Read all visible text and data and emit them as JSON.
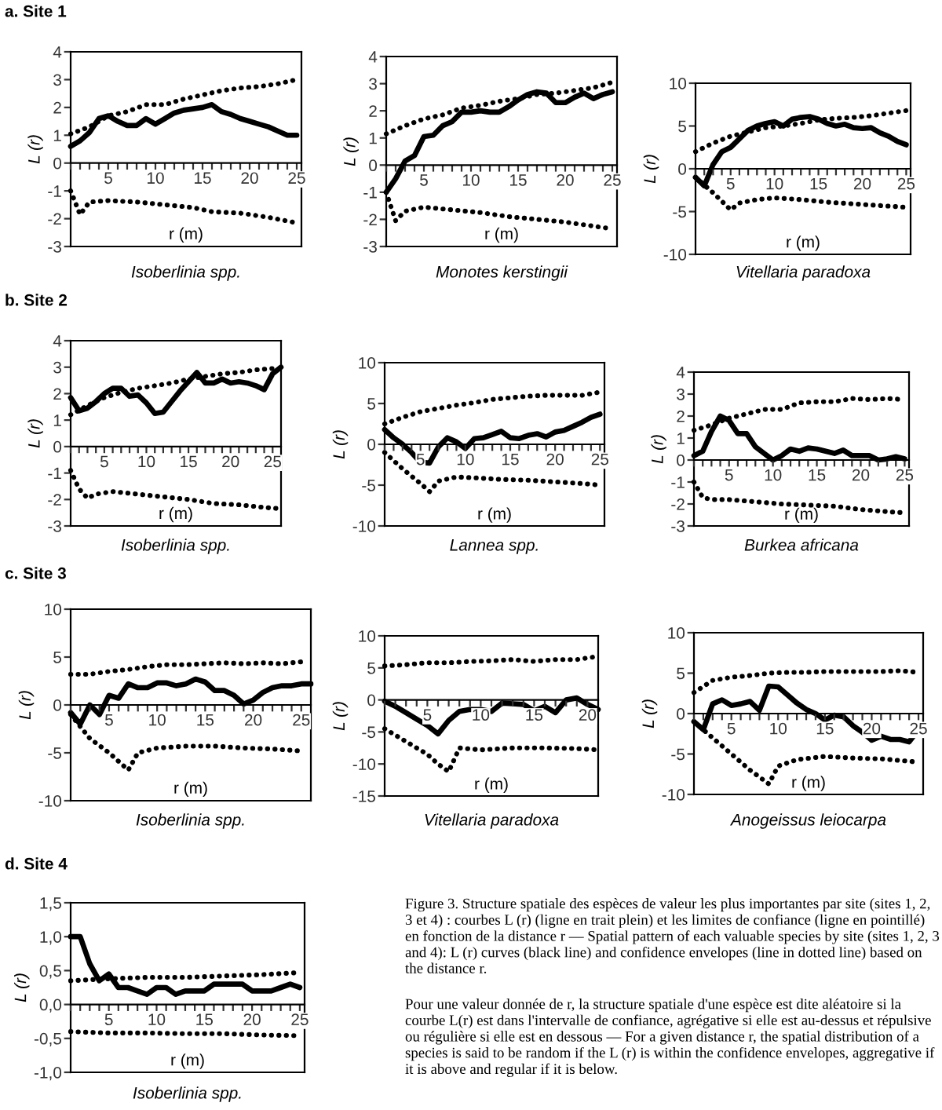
{
  "chart_data": [
    {
      "type": "line",
      "subtitle": "a. Site 1",
      "title": "Isoberlinia spp.",
      "xlabel": "r (m)",
      "ylabel": "L (r)",
      "xlim": [
        1,
        25.5
      ],
      "ylim": [
        -3,
        4
      ],
      "yticks": [
        -3,
        -2,
        -1,
        0,
        1,
        2,
        3,
        4
      ],
      "xticks": [
        {
          "value": 1,
          "label": null
        },
        {
          "value": 2,
          "label": null
        },
        {
          "value": 3,
          "label": null
        },
        {
          "value": 4,
          "label": null
        },
        5,
        {
          "value": 6,
          "label": null
        },
        {
          "value": 7,
          "label": null
        },
        {
          "value": 8,
          "label": null
        },
        {
          "value": 9,
          "label": null
        },
        10,
        {
          "value": 11,
          "label": null
        },
        {
          "value": 12,
          "label": null
        },
        {
          "value": 13,
          "label": null
        },
        {
          "value": 14,
          "label": null
        },
        15,
        {
          "value": 16,
          "label": null
        },
        {
          "value": 17,
          "label": null
        },
        {
          "value": 18,
          "label": null
        },
        {
          "value": 19,
          "label": null
        },
        20,
        {
          "value": 21,
          "label": null
        },
        {
          "value": 22,
          "label": null
        },
        {
          "value": 23,
          "label": null
        },
        {
          "value": 24,
          "label": null
        },
        25
      ],
      "series": [
        {
          "color": "#000000",
          "line_style": "solid",
          "x": [
            1,
            2,
            3,
            4,
            5,
            6,
            7,
            8,
            9,
            10,
            11,
            12,
            13,
            14,
            15,
            16,
            17,
            18,
            19,
            20,
            21,
            22,
            23,
            24,
            25
          ],
          "values": [
            0.6,
            0.8,
            1.1,
            1.6,
            1.7,
            1.5,
            1.35,
            1.35,
            1.6,
            1.4,
            1.6,
            1.8,
            1.9,
            1.95,
            2.0,
            2.1,
            1.85,
            1.75,
            1.6,
            1.5,
            1.4,
            1.3,
            1.15,
            1.0,
            1.0
          ]
        },
        {
          "color": "#000000",
          "line_style": "dotted",
          "x": [
            1,
            3,
            5,
            7,
            9,
            11,
            13,
            15,
            17,
            19,
            21,
            23,
            25
          ],
          "values": [
            1.05,
            1.3,
            1.7,
            1.85,
            2.1,
            2.1,
            2.3,
            2.45,
            2.6,
            2.7,
            2.75,
            2.85,
            3.0
          ]
        },
        {
          "color": "#000000",
          "line_style": "dotted",
          "x": [
            1,
            2,
            3,
            5,
            8,
            11,
            14,
            16,
            19,
            22,
            25
          ],
          "values": [
            -1.0,
            -1.85,
            -1.4,
            -1.35,
            -1.4,
            -1.5,
            -1.6,
            -1.75,
            -1.8,
            -1.95,
            -2.15
          ]
        }
      ]
    },
    {
      "type": "line",
      "title": "Monotes kerstingii",
      "xlabel": "r (m)",
      "ylabel": "L (r)",
      "xlim": [
        1,
        25.5
      ],
      "ylim": [
        -3,
        4
      ],
      "yticks": [
        -3,
        -2,
        -1,
        0,
        1,
        2,
        3,
        4
      ],
      "xticks": [
        {
          "value": 1,
          "label": null
        },
        {
          "value": 2,
          "label": null
        },
        {
          "value": 3,
          "label": null
        },
        {
          "value": 4,
          "label": null
        },
        5,
        {
          "value": 6,
          "label": null
        },
        {
          "value": 7,
          "label": null
        },
        {
          "value": 8,
          "label": null
        },
        {
          "value": 9,
          "label": null
        },
        10,
        {
          "value": 11,
          "label": null
        },
        {
          "value": 12,
          "label": null
        },
        {
          "value": 13,
          "label": null
        },
        {
          "value": 14,
          "label": null
        },
        15,
        {
          "value": 16,
          "label": null
        },
        {
          "value": 17,
          "label": null
        },
        {
          "value": 18,
          "label": null
        },
        {
          "value": 19,
          "label": null
        },
        20,
        {
          "value": 21,
          "label": null
        },
        {
          "value": 22,
          "label": null
        },
        {
          "value": 23,
          "label": null
        },
        {
          "value": 24,
          "label": null
        },
        25
      ],
      "series": [
        {
          "color": "#000000",
          "line_style": "solid",
          "x": [
            1,
            2,
            3,
            4,
            5,
            6,
            7,
            8,
            9,
            10,
            11,
            12,
            13,
            14,
            15,
            16,
            17,
            18,
            19,
            20,
            21,
            22,
            23,
            24,
            25
          ],
          "values": [
            -1.0,
            -0.5,
            0.15,
            0.35,
            1.05,
            1.1,
            1.45,
            1.6,
            1.95,
            1.95,
            2.0,
            1.95,
            1.95,
            2.15,
            2.4,
            2.6,
            2.7,
            2.65,
            2.3,
            2.3,
            2.5,
            2.65,
            2.45,
            2.6,
            2.7
          ]
        },
        {
          "color": "#000000",
          "line_style": "dotted",
          "x": [
            1,
            3,
            5,
            7,
            9,
            11,
            13,
            15,
            17,
            19,
            21,
            23,
            25
          ],
          "values": [
            1.15,
            1.45,
            1.7,
            1.85,
            2.1,
            2.2,
            2.35,
            2.45,
            2.6,
            2.65,
            2.75,
            2.85,
            3.05
          ]
        },
        {
          "color": "#000000",
          "line_style": "dotted",
          "x": [
            1,
            2,
            3,
            5,
            8,
            11,
            14,
            17,
            20,
            23,
            25
          ],
          "values": [
            -1.0,
            -2.05,
            -1.7,
            -1.55,
            -1.65,
            -1.75,
            -1.9,
            -2.0,
            -2.1,
            -2.25,
            -2.35
          ]
        }
      ]
    },
    {
      "type": "line",
      "title": "Vitellaria paradoxa",
      "xlabel": "r (m)",
      "ylabel": "L (r)",
      "xlim": [
        1,
        25.5
      ],
      "ylim": [
        -10,
        10
      ],
      "yticks": [
        -10,
        -5,
        0,
        5,
        10
      ],
      "xticks": [
        {
          "value": 1,
          "label": null
        },
        {
          "value": 2,
          "label": null
        },
        {
          "value": 3,
          "label": null
        },
        {
          "value": 4,
          "label": null
        },
        5,
        {
          "value": 6,
          "label": null
        },
        {
          "value": 7,
          "label": null
        },
        {
          "value": 8,
          "label": null
        },
        {
          "value": 9,
          "label": null
        },
        10,
        {
          "value": 11,
          "label": null
        },
        {
          "value": 12,
          "label": null
        },
        {
          "value": 13,
          "label": null
        },
        {
          "value": 14,
          "label": null
        },
        15,
        {
          "value": 16,
          "label": null
        },
        {
          "value": 17,
          "label": null
        },
        {
          "value": 18,
          "label": null
        },
        {
          "value": 19,
          "label": null
        },
        20,
        {
          "value": 21,
          "label": null
        },
        {
          "value": 22,
          "label": null
        },
        {
          "value": 23,
          "label": null
        },
        {
          "value": 24,
          "label": null
        },
        25
      ],
      "series": [
        {
          "color": "#000000",
          "line_style": "solid",
          "x": [
            1,
            2,
            3,
            4,
            5,
            6,
            7,
            8,
            9,
            10,
            11,
            12,
            13,
            14,
            15,
            16,
            17,
            18,
            19,
            20,
            21,
            22,
            23,
            24,
            25
          ],
          "values": [
            -1,
            -2,
            0.5,
            2.0,
            2.5,
            3.5,
            4.5,
            5.0,
            5.3,
            5.5,
            5.0,
            5.8,
            6.0,
            6.1,
            5.8,
            5.3,
            5.0,
            5.2,
            4.8,
            4.7,
            4.8,
            4.2,
            3.8,
            3.2,
            2.8
          ]
        },
        {
          "color": "#000000",
          "line_style": "dotted",
          "x": [
            1,
            3,
            5,
            7,
            9,
            11,
            13,
            15,
            17,
            19,
            21,
            23,
            25
          ],
          "values": [
            2.0,
            3.0,
            3.8,
            4.3,
            4.8,
            5.0,
            5.3,
            5.7,
            5.9,
            6.0,
            6.2,
            6.5,
            6.8
          ]
        },
        {
          "color": "#000000",
          "line_style": "dotted",
          "x": [
            1,
            3,
            5,
            6,
            8,
            10,
            13,
            16,
            19,
            22,
            25
          ],
          "values": [
            -1,
            -2.8,
            -4.8,
            -4.0,
            -3.6,
            -3.4,
            -3.6,
            -3.9,
            -4.1,
            -4.3,
            -4.5
          ]
        }
      ]
    },
    {
      "type": "line",
      "subtitle": "b. Site 2",
      "title": "Isoberlinia spp.",
      "xlabel": "r (m)",
      "ylabel": "L (r)",
      "xlim": [
        1,
        26
      ],
      "ylim": [
        -3,
        4
      ],
      "yticks": [
        -3,
        -2,
        -1,
        0,
        1,
        2,
        3,
        4
      ],
      "xticks": [
        {
          "value": 1,
          "label": null
        },
        {
          "value": 2,
          "label": null
        },
        {
          "value": 3,
          "label": null
        },
        {
          "value": 4,
          "label": null
        },
        5,
        {
          "value": 6,
          "label": null
        },
        {
          "value": 7,
          "label": null
        },
        {
          "value": 8,
          "label": null
        },
        {
          "value": 9,
          "label": null
        },
        10,
        {
          "value": 11,
          "label": null
        },
        {
          "value": 12,
          "label": null
        },
        {
          "value": 13,
          "label": null
        },
        {
          "value": 14,
          "label": null
        },
        15,
        {
          "value": 16,
          "label": null
        },
        {
          "value": 17,
          "label": null
        },
        {
          "value": 18,
          "label": null
        },
        {
          "value": 19,
          "label": null
        },
        20,
        {
          "value": 21,
          "label": null
        },
        {
          "value": 22,
          "label": null
        },
        {
          "value": 23,
          "label": null
        },
        {
          "value": 24,
          "label": null
        },
        25
      ],
      "series": [
        {
          "color": "#000000",
          "line_style": "solid",
          "x": [
            1,
            2,
            3,
            4,
            5,
            6,
            7,
            8,
            9,
            10,
            11,
            12,
            13,
            14,
            15,
            16,
            17,
            18,
            19,
            20,
            21,
            22,
            23,
            24,
            25,
            26
          ],
          "values": [
            1.85,
            1.35,
            1.45,
            1.7,
            2.0,
            2.2,
            2.2,
            1.9,
            1.95,
            1.65,
            1.25,
            1.3,
            1.7,
            2.1,
            2.45,
            2.8,
            2.4,
            2.4,
            2.55,
            2.4,
            2.45,
            2.4,
            2.3,
            2.15,
            2.75,
            3.0
          ]
        },
        {
          "color": "#000000",
          "line_style": "dotted",
          "x": [
            1,
            3,
            5,
            7,
            9,
            11,
            13,
            15,
            17,
            19,
            21,
            23,
            25
          ],
          "values": [
            1.2,
            1.55,
            1.85,
            2.05,
            2.2,
            2.3,
            2.4,
            2.55,
            2.65,
            2.75,
            2.8,
            2.9,
            2.95
          ]
        },
        {
          "color": "#000000",
          "line_style": "dotted",
          "x": [
            1,
            2,
            3,
            4,
            6,
            9,
            12,
            15,
            18,
            21,
            24,
            26
          ],
          "values": [
            -0.9,
            -1.6,
            -1.95,
            -1.8,
            -1.7,
            -1.8,
            -1.9,
            -2.0,
            -2.15,
            -2.2,
            -2.3,
            -2.35
          ]
        }
      ]
    },
    {
      "type": "line",
      "title": "Lannea spp.",
      "xlabel": "r (m)",
      "ylabel": "L (r)",
      "xlim": [
        1,
        25.5
      ],
      "ylim": [
        -10,
        10
      ],
      "yticks": [
        -10,
        -5,
        0,
        5,
        10
      ],
      "xticks": [
        {
          "value": 1,
          "label": null
        },
        {
          "value": 2,
          "label": null
        },
        {
          "value": 3,
          "label": null
        },
        {
          "value": 4,
          "label": null
        },
        5,
        {
          "value": 6,
          "label": null
        },
        {
          "value": 7,
          "label": null
        },
        {
          "value": 8,
          "label": null
        },
        {
          "value": 9,
          "label": null
        },
        10,
        {
          "value": 11,
          "label": null
        },
        {
          "value": 12,
          "label": null
        },
        {
          "value": 13,
          "label": null
        },
        {
          "value": 14,
          "label": null
        },
        15,
        {
          "value": 16,
          "label": null
        },
        {
          "value": 17,
          "label": null
        },
        {
          "value": 18,
          "label": null
        },
        {
          "value": 19,
          "label": null
        },
        20,
        {
          "value": 21,
          "label": null
        },
        {
          "value": 22,
          "label": null
        },
        {
          "value": 23,
          "label": null
        },
        {
          "value": 24,
          "label": null
        },
        25
      ],
      "series": [
        {
          "color": "#000000",
          "line_style": "solid",
          "x": [
            1,
            2,
            3,
            4,
            5,
            6,
            7,
            8,
            9,
            10,
            11,
            12,
            13,
            14,
            15,
            16,
            17,
            18,
            19,
            20,
            21,
            22,
            23,
            24,
            25
          ],
          "values": [
            1.8,
            0.8,
            0,
            -1.0,
            -2.2,
            -2.3,
            -0.3,
            0.8,
            0.3,
            -0.5,
            0.7,
            0.8,
            1.2,
            1.6,
            0.8,
            0.7,
            1.1,
            1.3,
            0.9,
            1.5,
            1.7,
            2.2,
            2.7,
            3.3,
            3.7
          ]
        },
        {
          "color": "#000000",
          "line_style": "dotted",
          "x": [
            1,
            3,
            5,
            7,
            9,
            11,
            13,
            15,
            17,
            19,
            21,
            23,
            25
          ],
          "values": [
            2.5,
            3.3,
            4.0,
            4.4,
            4.8,
            5.1,
            5.5,
            5.7,
            5.9,
            6.0,
            6.0,
            6.0,
            6.4
          ]
        },
        {
          "color": "#000000",
          "line_style": "dotted",
          "x": [
            1,
            3,
            5,
            6,
            7,
            9,
            11,
            14,
            17,
            20,
            23,
            25
          ],
          "values": [
            -1,
            -3,
            -4.8,
            -5.8,
            -4.5,
            -4.0,
            -4.1,
            -4.3,
            -4.4,
            -4.6,
            -4.8,
            -5.0
          ]
        }
      ]
    },
    {
      "type": "line",
      "title": "Burkea africana",
      "xlabel": "r (m)",
      "ylabel": "L (r)",
      "xlim": [
        1,
        25.5
      ],
      "ylim": [
        -3,
        4
      ],
      "yticks": [
        -3,
        -2,
        -1,
        0,
        1,
        2,
        3,
        4
      ],
      "xticks": [
        {
          "value": 1,
          "label": null
        },
        {
          "value": 2,
          "label": null
        },
        {
          "value": 3,
          "label": null
        },
        {
          "value": 4,
          "label": null
        },
        5,
        {
          "value": 6,
          "label": null
        },
        {
          "value": 7,
          "label": null
        },
        {
          "value": 8,
          "label": null
        },
        {
          "value": 9,
          "label": null
        },
        10,
        {
          "value": 11,
          "label": null
        },
        {
          "value": 12,
          "label": null
        },
        {
          "value": 13,
          "label": null
        },
        {
          "value": 14,
          "label": null
        },
        15,
        {
          "value": 16,
          "label": null
        },
        {
          "value": 17,
          "label": null
        },
        {
          "value": 18,
          "label": null
        },
        {
          "value": 19,
          "label": null
        },
        20,
        {
          "value": 21,
          "label": null
        },
        {
          "value": 22,
          "label": null
        },
        {
          "value": 23,
          "label": null
        },
        {
          "value": 24,
          "label": null
        },
        25
      ],
      "series": [
        {
          "color": "#000000",
          "line_style": "solid",
          "x": [
            1,
            2,
            3,
            4,
            5,
            6,
            7,
            8,
            9,
            10,
            11,
            12,
            13,
            14,
            15,
            16,
            17,
            18,
            19,
            20,
            21,
            22,
            23,
            24,
            25
          ],
          "values": [
            0.2,
            0.4,
            1.3,
            2.0,
            1.8,
            1.2,
            1.2,
            0.6,
            0.3,
            0,
            0.2,
            0.5,
            0.4,
            0.55,
            0.5,
            0.4,
            0.3,
            0.45,
            0.2,
            0.2,
            0.2,
            0,
            0.05,
            0.15,
            0.05
          ]
        },
        {
          "color": "#000000",
          "line_style": "dotted",
          "x": [
            1,
            3,
            5,
            7,
            9,
            11,
            13,
            15,
            17,
            19,
            21,
            23,
            25
          ],
          "values": [
            1.35,
            1.6,
            1.9,
            2.1,
            2.3,
            2.3,
            2.6,
            2.65,
            2.65,
            2.8,
            2.75,
            2.8,
            2.75
          ]
        },
        {
          "color": "#000000",
          "line_style": "dotted",
          "x": [
            1,
            2,
            3,
            5,
            8,
            11,
            14,
            17,
            20,
            23,
            25
          ],
          "values": [
            -1.0,
            -1.7,
            -1.8,
            -1.8,
            -1.9,
            -2.0,
            -2.05,
            -2.1,
            -2.25,
            -2.35,
            -2.4
          ]
        }
      ]
    },
    {
      "type": "line",
      "subtitle": "c. Site 3",
      "title": "Isoberlinia spp.",
      "xlabel": "r (m)",
      "ylabel": "L (r)",
      "xlim": [
        1,
        26
      ],
      "ylim": [
        -10,
        10
      ],
      "yticks": [
        -10,
        -5,
        0,
        5,
        10
      ],
      "xticks": [
        {
          "value": 1,
          "label": null
        },
        {
          "value": 2,
          "label": null
        },
        {
          "value": 3,
          "label": null
        },
        {
          "value": 4,
          "label": null
        },
        5,
        {
          "value": 6,
          "label": null
        },
        {
          "value": 7,
          "label": null
        },
        {
          "value": 8,
          "label": null
        },
        {
          "value": 9,
          "label": null
        },
        10,
        {
          "value": 11,
          "label": null
        },
        {
          "value": 12,
          "label": null
        },
        {
          "value": 13,
          "label": null
        },
        {
          "value": 14,
          "label": null
        },
        15,
        {
          "value": 16,
          "label": null
        },
        {
          "value": 17,
          "label": null
        },
        {
          "value": 18,
          "label": null
        },
        {
          "value": 19,
          "label": null
        },
        20,
        {
          "value": 21,
          "label": null
        },
        {
          "value": 22,
          "label": null
        },
        {
          "value": 23,
          "label": null
        },
        {
          "value": 24,
          "label": null
        },
        25
      ],
      "series": [
        {
          "color": "#000000",
          "line_style": "solid",
          "x": [
            1,
            2,
            3,
            4,
            5,
            6,
            7,
            8,
            9,
            10,
            11,
            12,
            13,
            14,
            15,
            16,
            17,
            18,
            19,
            20,
            21,
            22,
            23,
            24,
            25,
            26
          ],
          "values": [
            -0.8,
            -2.0,
            0,
            -1.0,
            1.0,
            0.7,
            2.2,
            1.8,
            1.8,
            2.3,
            2.3,
            2.0,
            2.2,
            2.7,
            2.4,
            1.5,
            1.5,
            1.0,
            0.1,
            0.5,
            1.3,
            1.8,
            2.0,
            2.0,
            2.2,
            2.2
          ]
        },
        {
          "color": "#000000",
          "line_style": "dotted",
          "x": [
            1,
            3,
            5,
            7,
            9,
            11,
            13,
            15,
            17,
            19,
            21,
            23,
            25
          ],
          "values": [
            3.2,
            3.2,
            3.5,
            3.7,
            4.0,
            4.2,
            4.2,
            4.3,
            4.4,
            4.3,
            4.4,
            4.3,
            4.5
          ]
        },
        {
          "color": "#000000",
          "line_style": "dotted",
          "x": [
            1,
            3,
            5,
            7,
            8,
            10,
            13,
            16,
            19,
            22,
            25
          ],
          "values": [
            -1,
            -3.5,
            -5,
            -6.8,
            -5,
            -4.5,
            -4.3,
            -4.3,
            -4.5,
            -4.6,
            -4.8
          ]
        }
      ]
    },
    {
      "type": "line",
      "title": "Vitellaria paradoxa",
      "xlabel": "r (m)",
      "ylabel": "L (r)",
      "xlim": [
        1,
        21
      ],
      "ylim": [
        -15,
        10
      ],
      "yticks": [
        -15,
        -10,
        -5,
        0,
        5,
        10
      ],
      "xticks": [
        {
          "value": 1,
          "label": null
        },
        {
          "value": 2,
          "label": null
        },
        {
          "value": 3,
          "label": null
        },
        {
          "value": 4,
          "label": null
        },
        5,
        {
          "value": 6,
          "label": null
        },
        {
          "value": 7,
          "label": null
        },
        {
          "value": 8,
          "label": null
        },
        {
          "value": 9,
          "label": null
        },
        10,
        {
          "value": 11,
          "label": null
        },
        {
          "value": 12,
          "label": null
        },
        {
          "value": 13,
          "label": null
        },
        {
          "value": 14,
          "label": null
        },
        15,
        {
          "value": 16,
          "label": null
        },
        {
          "value": 17,
          "label": null
        },
        {
          "value": 18,
          "label": null
        },
        {
          "value": 19,
          "label": null
        },
        20
      ],
      "series": [
        {
          "color": "#000000",
          "line_style": "solid",
          "x": [
            1,
            2,
            3,
            4,
            5,
            6,
            7,
            8,
            9,
            10,
            11,
            12,
            13,
            14,
            15,
            16,
            17,
            18,
            19,
            20,
            21
          ],
          "values": [
            -0.2,
            -1,
            -2,
            -3,
            -4,
            -5.3,
            -3.2,
            -1.8,
            -1.5,
            -1.5,
            -1.8,
            -0.5,
            -0.6,
            -0.7,
            -1.7,
            -1.0,
            -2.0,
            0,
            0.3,
            -0.7,
            -1.5
          ]
        },
        {
          "color": "#000000",
          "line_style": "dotted",
          "x": [
            1,
            3,
            5,
            7,
            9,
            11,
            13,
            15,
            17,
            19,
            21
          ],
          "values": [
            5.3,
            5.5,
            5.8,
            5.8,
            6.0,
            6.1,
            6.3,
            6.0,
            6.3,
            6.3,
            6.8
          ]
        },
        {
          "color": "#000000",
          "line_style": "dotted",
          "x": [
            1,
            3,
            5,
            6,
            7,
            8,
            10,
            13,
            16,
            19,
            21
          ],
          "values": [
            -4.5,
            -6.5,
            -8.5,
            -10,
            -11.2,
            -7.5,
            -7.8,
            -7.5,
            -7.5,
            -7.6,
            -7.8
          ]
        }
      ]
    },
    {
      "type": "line",
      "title": "Anogeissus leiocarpa",
      "xlabel": "r (m)",
      "ylabel": "L (r)",
      "xlim": [
        1,
        25.5
      ],
      "ylim": [
        -10,
        10
      ],
      "yticks": [
        -10,
        -5,
        0,
        5,
        10
      ],
      "xticks": [
        {
          "value": 1,
          "label": null
        },
        {
          "value": 2,
          "label": null
        },
        {
          "value": 3,
          "label": null
        },
        {
          "value": 4,
          "label": null
        },
        5,
        {
          "value": 6,
          "label": null
        },
        {
          "value": 7,
          "label": null
        },
        {
          "value": 8,
          "label": null
        },
        {
          "value": 9,
          "label": null
        },
        10,
        {
          "value": 11,
          "label": null
        },
        {
          "value": 12,
          "label": null
        },
        {
          "value": 13,
          "label": null
        },
        {
          "value": 14,
          "label": null
        },
        15,
        {
          "value": 16,
          "label": null
        },
        {
          "value": 17,
          "label": null
        },
        {
          "value": 18,
          "label": null
        },
        {
          "value": 19,
          "label": null
        },
        20,
        {
          "value": 21,
          "label": null
        },
        {
          "value": 22,
          "label": null
        },
        {
          "value": 23,
          "label": null
        },
        {
          "value": 24,
          "label": null
        },
        25
      ],
      "series": [
        {
          "color": "#000000",
          "line_style": "solid",
          "x": [
            1,
            2,
            3,
            4,
            5,
            6,
            7,
            8,
            9,
            10,
            11,
            12,
            13,
            14,
            15,
            16,
            17,
            18,
            19,
            20,
            21,
            22,
            23,
            24,
            25
          ],
          "values": [
            -1,
            -2,
            1.2,
            1.7,
            1.0,
            1.2,
            1.5,
            0.4,
            3.4,
            3.3,
            2.3,
            1.3,
            0.5,
            0,
            -0.8,
            -0.2,
            -0.4,
            -1.5,
            -2.3,
            -3.3,
            -2.8,
            -3.2,
            -3.2,
            -3.5,
            -2.0
          ]
        },
        {
          "color": "#000000",
          "line_style": "dotted",
          "x": [
            1,
            3,
            5,
            7,
            9,
            11,
            13,
            15,
            17,
            19,
            21,
            23,
            25
          ],
          "values": [
            2.6,
            4.1,
            4.5,
            4.7,
            5.0,
            5.1,
            5.1,
            5.2,
            5.2,
            5.2,
            5.2,
            5.3,
            5.1
          ]
        },
        {
          "color": "#000000",
          "line_style": "dotted",
          "x": [
            1,
            3,
            5,
            7,
            9,
            10,
            12,
            15,
            18,
            21,
            25
          ],
          "values": [
            -1,
            -3,
            -5,
            -7,
            -8.7,
            -6.5,
            -5.7,
            -5.3,
            -5.5,
            -5.6,
            -6.0
          ]
        }
      ]
    },
    {
      "type": "line",
      "subtitle": "d. Site 4",
      "title": "Isoberlinia spp.",
      "xlabel": "r (m)",
      "ylabel": "L (r)",
      "xlim": [
        1,
        25.5
      ],
      "ylim": [
        -1,
        1.5
      ],
      "yticks": [
        {
          "value": -1,
          "label": "-1,0"
        },
        {
          "value": -0.5,
          "label": "-0,5"
        },
        {
          "value": 0,
          "label": "0,0"
        },
        {
          "value": 0.5,
          "label": "0,5"
        },
        {
          "value": 1,
          "label": "1,0"
        },
        {
          "value": 1.5,
          "label": "1,5"
        }
      ],
      "xticks": [
        {
          "value": 1,
          "label": null
        },
        {
          "value": 2,
          "label": null
        },
        {
          "value": 3,
          "label": null
        },
        {
          "value": 4,
          "label": null
        },
        5,
        {
          "value": 6,
          "label": null
        },
        {
          "value": 7,
          "label": null
        },
        {
          "value": 8,
          "label": null
        },
        {
          "value": 9,
          "label": null
        },
        10,
        {
          "value": 11,
          "label": null
        },
        {
          "value": 12,
          "label": null
        },
        {
          "value": 13,
          "label": null
        },
        {
          "value": 14,
          "label": null
        },
        15,
        {
          "value": 16,
          "label": null
        },
        {
          "value": 17,
          "label": null
        },
        {
          "value": 18,
          "label": null
        },
        {
          "value": 19,
          "label": null
        },
        20,
        {
          "value": 21,
          "label": null
        },
        {
          "value": 22,
          "label": null
        },
        {
          "value": 23,
          "label": null
        },
        {
          "value": 24,
          "label": null
        },
        25
      ],
      "series": [
        {
          "color": "#000000",
          "line_style": "solid",
          "x": [
            1,
            2,
            3,
            4,
            5,
            6,
            7,
            8,
            9,
            10,
            11,
            12,
            13,
            14,
            15,
            16,
            17,
            18,
            19,
            20,
            21,
            22,
            23,
            24,
            25
          ],
          "values": [
            1.0,
            1.0,
            0.6,
            0.35,
            0.45,
            0.25,
            0.25,
            0.2,
            0.15,
            0.25,
            0.25,
            0.15,
            0.2,
            0.2,
            0.2,
            0.3,
            0.3,
            0.3,
            0.3,
            0.2,
            0.2,
            0.2,
            0.25,
            0.3,
            0.25
          ]
        },
        {
          "color": "#000000",
          "line_style": "dotted",
          "x": [
            1,
            5,
            9,
            13,
            17,
            21,
            25
          ],
          "values": [
            0.35,
            0.38,
            0.4,
            0.4,
            0.42,
            0.44,
            0.47
          ]
        },
        {
          "color": "#000000",
          "line_style": "dotted",
          "x": [
            1,
            5,
            9,
            13,
            17,
            21,
            25
          ],
          "values": [
            -0.4,
            -0.42,
            -0.42,
            -0.43,
            -0.43,
            -0.45,
            -0.46
          ]
        }
      ],
      "annotations": [
        "Figure 3. Structure spatiale des espèces de valeur les plus importantes par site (sites 1, 2, 3 et 4) : courbes L (r) (ligne en trait plein) et les limites de confiance (ligne en pointillé) en fonction de la distance r — Spatial pattern of each valuable species by site (sites 1, 2, 3 and 4): L (r) curves (black line) and confidence envelopes (line in dotted line) based on the distance r.",
        "Pour une valeur donnée de r, la structure spatiale d'une espèce est dite aléatoire si la courbe L(r) est dans l'intervalle de confiance, agrégative si elle est au-dessus et répulsive ou régulière si elle est en dessous — For a given distance r, the spatial distribution of a species is said to be random if the L (r) is within the confidence envelopes, aggregative if it is above and regular if it is below."
      ]
    }
  ]
}
